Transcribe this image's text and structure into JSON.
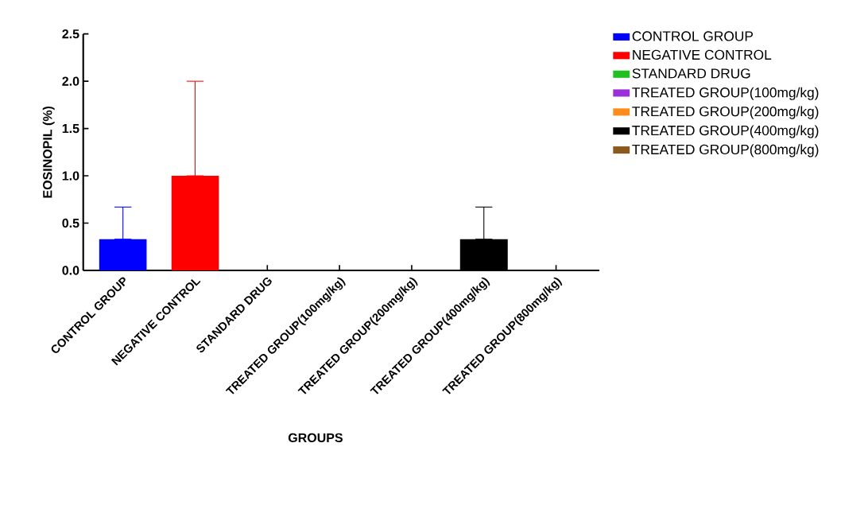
{
  "chart_data": {
    "type": "bar",
    "xlabel": "GROUPS",
    "ylabel": "EOSINOPIL (%)",
    "categories": [
      "CONTROL GROUP",
      "NEGATIVE CONTROL",
      "STANDARD DRUG",
      "TREATED GROUP(100mg/kg)",
      "TREATED GROUP(200mg/kg)",
      "TREATED GROUP(400mg/kg)",
      "TREATED GROUP(800mg/kg)"
    ],
    "series": [
      {
        "name": "CONTROL GROUP",
        "color": "#0000ff",
        "values": [
          0.33,
          null,
          null,
          null,
          null,
          null,
          null
        ],
        "errors": [
          [
            0.33,
            0.67
          ],
          null,
          null,
          null,
          null,
          null,
          null
        ]
      },
      {
        "name": "NEGATIVE CONTROL",
        "color": "#ff0000",
        "values": [
          null,
          1.0,
          null,
          null,
          null,
          null,
          null
        ],
        "errors": [
          null,
          [
            1.0,
            2.0
          ],
          null,
          null,
          null,
          null,
          null
        ]
      },
      {
        "name": "STANDARD DRUG",
        "color": "#1fc01f",
        "values": [
          null,
          null,
          0,
          null,
          null,
          null,
          null
        ]
      },
      {
        "name": "TREATED GROUP(100mg/kg)",
        "color": "#9b30d9",
        "values": [
          null,
          null,
          null,
          0,
          null,
          null,
          null
        ]
      },
      {
        "name": "TREATED GROUP(200mg/kg)",
        "color": "#ff8c1a",
        "values": [
          null,
          null,
          null,
          null,
          0,
          null,
          null
        ]
      },
      {
        "name": "TREATED GROUP(400mg/kg)",
        "color": "#000000",
        "values": [
          null,
          null,
          null,
          null,
          null,
          0.33,
          null
        ],
        "errors": [
          null,
          null,
          null,
          null,
          null,
          [
            0.33,
            0.67
          ],
          null
        ]
      },
      {
        "name": "TREATED GROUP(800mg/kg)",
        "color": "#8b5a1e",
        "values": [
          null,
          null,
          null,
          null,
          null,
          null,
          0
        ]
      }
    ],
    "ylim": [
      0,
      2.5
    ],
    "yticks": [
      {
        "value": 0,
        "label": "0.0"
      },
      {
        "value": 0.5,
        "label": "0.5"
      },
      {
        "value": 1,
        "label": "1.0"
      },
      {
        "value": 1.5,
        "label": "1.5"
      },
      {
        "value": 2,
        "label": "2.0"
      },
      {
        "value": 2.5,
        "label": "2.5"
      }
    ],
    "legend": "right"
  }
}
